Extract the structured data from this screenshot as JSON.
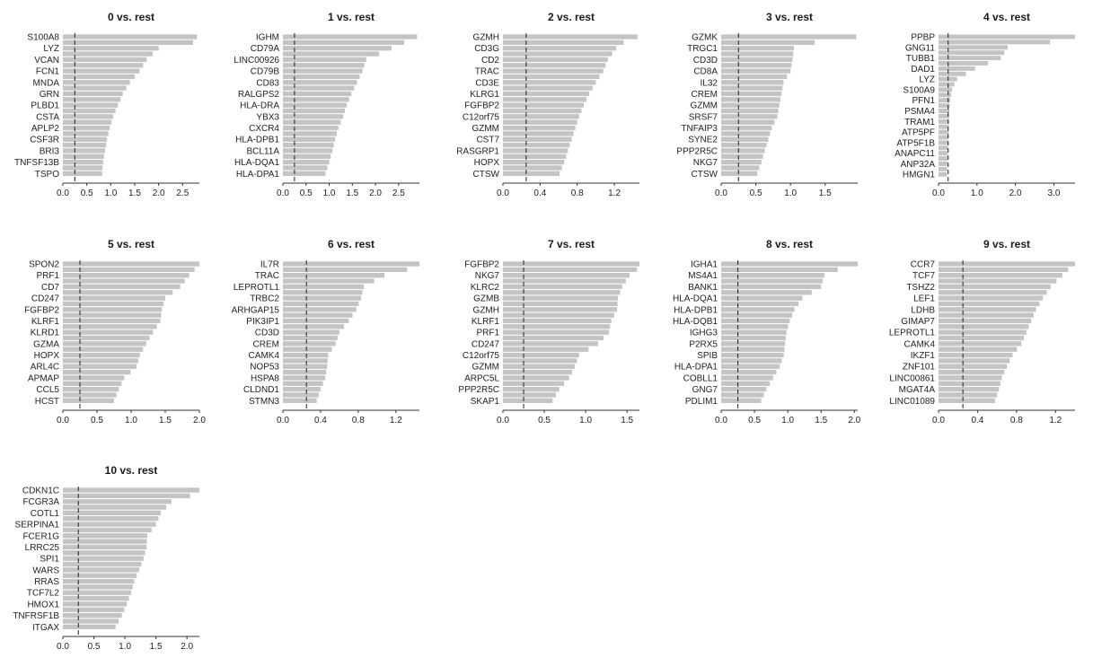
{
  "figure": {
    "colors": {
      "bar": "#c4c4c4",
      "axis": "#333333",
      "threshold": "#333333",
      "text": "#222222"
    }
  },
  "chart_data": [
    {
      "type": "bar",
      "orientation": "horizontal",
      "title": "0 vs. rest",
      "categories": [
        "S100A8",
        "LYZ",
        "VCAN",
        "FCN1",
        "MNDA",
        "GRN",
        "PLBD1",
        "CSTA",
        "APLP2",
        "CSF3R",
        "BRI3",
        "TNFSF13B",
        "TSPO"
      ],
      "values": [
        2.8,
        2.0,
        1.75,
        1.6,
        1.4,
        1.25,
        1.15,
        1.05,
        0.98,
        0.92,
        0.88,
        0.84,
        0.82
      ],
      "extra_bar": 2.72,
      "xlim": [
        0,
        2.85
      ],
      "xticks": [
        0,
        0.5,
        1.0,
        1.5,
        2.0,
        2.5
      ],
      "threshold": 0.25
    },
    {
      "type": "bar",
      "orientation": "horizontal",
      "title": "1 vs. rest",
      "categories": [
        "IGHM",
        "CD79A",
        "LINC00926",
        "CD79B",
        "CD83",
        "RALGPS2",
        "HLA-DRA",
        "YBX3",
        "CXCR4",
        "HLA-DPB1",
        "BCL11A",
        "HLA-DQA1",
        "HLA-DPA1"
      ],
      "values": [
        2.9,
        2.35,
        1.8,
        1.72,
        1.6,
        1.48,
        1.38,
        1.3,
        1.2,
        1.13,
        1.07,
        1.0,
        0.92
      ],
      "extra_bar": 2.62,
      "xlim": [
        0,
        2.95
      ],
      "xticks": [
        0,
        0.5,
        1.0,
        1.5,
        2.0,
        2.5
      ],
      "threshold": 0.25
    },
    {
      "type": "bar",
      "orientation": "horizontal",
      "title": "2 vs. rest",
      "categories": [
        "GZMH",
        "CD3G",
        "CD2",
        "TRAC",
        "CD3E",
        "KLRG1",
        "FGFBP2",
        "C12orf75",
        "GZMM",
        "CST7",
        "RASGRP1",
        "HOPX",
        "CTSW"
      ],
      "values": [
        1.45,
        1.22,
        1.13,
        1.08,
        1.0,
        0.93,
        0.87,
        0.82,
        0.78,
        0.74,
        0.7,
        0.66,
        0.61
      ],
      "extra_bar": 1.3,
      "xlim": [
        0,
        1.47
      ],
      "xticks": [
        0,
        0.4,
        0.8,
        1.2
      ],
      "threshold": 0.25
    },
    {
      "type": "bar",
      "orientation": "horizontal",
      "title": "3 vs. rest",
      "categories": [
        "GZMK",
        "TRGC1",
        "CD3D",
        "CD8A",
        "IL32",
        "CREM",
        "GZMM",
        "SRSF7",
        "TNFAIP3",
        "SYNE2",
        "PPP2R5C",
        "NKG7",
        "CTSW"
      ],
      "values": [
        1.95,
        1.05,
        1.03,
        1.0,
        0.9,
        0.87,
        0.84,
        0.81,
        0.73,
        0.68,
        0.63,
        0.58,
        0.52
      ],
      "extra_bar": 1.35,
      "xlim": [
        0,
        1.97
      ],
      "xticks": [
        0,
        0.5,
        1.0,
        1.5
      ],
      "threshold": 0.25
    },
    {
      "type": "bar",
      "orientation": "horizontal",
      "title": "4 vs. rest",
      "categories": [
        "PPBP",
        "GNG11",
        "TUBB1",
        "DAD1",
        "LYZ",
        "S100A9",
        "PFN1",
        "PSMA4",
        "TRAM1",
        "ATP5PF",
        "ATP5F1B",
        "ANAPC11",
        "ANP32A",
        "HMGN1"
      ],
      "values": [
        3.55,
        1.8,
        1.62,
        0.95,
        0.48,
        0.35,
        0.3,
        0.28,
        0.27,
        0.26,
        0.25,
        0.24,
        0.23,
        0.22
      ],
      "extra_bar": 2.9,
      "xlim": [
        0,
        3.55
      ],
      "xticks": [
        0,
        1.0,
        2.0,
        3.0
      ],
      "threshold": 0.25
    },
    {
      "type": "bar",
      "orientation": "horizontal",
      "title": "5 vs. rest",
      "categories": [
        "SPON2",
        "PRF1",
        "CD7",
        "CD247",
        "FGFBP2",
        "KLRF1",
        "KLRD1",
        "GZMA",
        "HOPX",
        "ARL4C",
        "APMAP",
        "CCL5",
        "HCST"
      ],
      "values": [
        2.0,
        1.85,
        1.72,
        1.5,
        1.45,
        1.43,
        1.32,
        1.22,
        1.13,
        1.08,
        0.9,
        0.82,
        0.75
      ],
      "extra_bar": 1.93,
      "xlim": [
        0,
        2.0
      ],
      "xticks": [
        0,
        0.5,
        1.0,
        1.5,
        2.0
      ],
      "threshold": 0.25
    },
    {
      "type": "bar",
      "orientation": "horizontal",
      "title": "6 vs. rest",
      "categories": [
        "IL7R",
        "TRAC",
        "LEPROTL1",
        "TRBC2",
        "ARHGAP15",
        "PIK3IP1",
        "CD3D",
        "CREM",
        "CAMK4",
        "NOP53",
        "HSPA8",
        "CLDND1",
        "STMN3"
      ],
      "values": [
        1.45,
        1.08,
        0.86,
        0.83,
        0.78,
        0.7,
        0.6,
        0.56,
        0.48,
        0.47,
        0.45,
        0.4,
        0.36
      ],
      "extra_bar": 1.32,
      "xlim": [
        0,
        1.45
      ],
      "xticks": [
        0,
        0.4,
        0.8,
        1.2
      ],
      "threshold": 0.25
    },
    {
      "type": "bar",
      "orientation": "horizontal",
      "title": "7 vs. rest",
      "categories": [
        "FGFBP2",
        "NKG7",
        "KLRC2",
        "GZMB",
        "GZMH",
        "KLRF1",
        "PRF1",
        "CD247",
        "C12orf75",
        "GZMM",
        "ARPC5L",
        "PPP2R5C",
        "SKAP1"
      ],
      "values": [
        1.65,
        1.53,
        1.44,
        1.39,
        1.38,
        1.31,
        1.28,
        1.15,
        0.92,
        0.87,
        0.8,
        0.68,
        0.6
      ],
      "extra_bar": 1.62,
      "xlim": [
        0,
        1.65
      ],
      "xticks": [
        0,
        0.5,
        1.0,
        1.5
      ],
      "threshold": 0.25
    },
    {
      "type": "bar",
      "orientation": "horizontal",
      "title": "8 vs. rest",
      "categories": [
        "IGHA1",
        "MS4A1",
        "BANK1",
        "HLA-DQA1",
        "HLA-DPB1",
        "HLA-DQB1",
        "IGHG3",
        "P2RX5",
        "SPIB",
        "HLA-DPA1",
        "COBLL1",
        "GNG7",
        "PDLIM1"
      ],
      "values": [
        2.05,
        1.55,
        1.5,
        1.22,
        1.1,
        1.03,
        0.98,
        0.96,
        0.94,
        0.88,
        0.78,
        0.68,
        0.6
      ],
      "extra_bar": 1.75,
      "xlim": [
        0,
        2.05
      ],
      "xticks": [
        0,
        0.5,
        1.0,
        1.5,
        2.0
      ],
      "threshold": 0.25
    },
    {
      "type": "bar",
      "orientation": "horizontal",
      "title": "9 vs. rest",
      "categories": [
        "CCR7",
        "TCF7",
        "TSHZ2",
        "LEF1",
        "LDHB",
        "GIMAP7",
        "LEPROTL1",
        "CAMK4",
        "IKZF1",
        "ZNF101",
        "LINC00861",
        "MGAT4A",
        "LINC01089"
      ],
      "values": [
        1.4,
        1.27,
        1.15,
        1.07,
        1.0,
        0.95,
        0.9,
        0.85,
        0.76,
        0.7,
        0.65,
        0.62,
        0.58
      ],
      "extra_bar": 1.33,
      "xlim": [
        0,
        1.4
      ],
      "xticks": [
        0,
        0.4,
        0.8,
        1.2
      ],
      "threshold": 0.25
    },
    {
      "type": "bar",
      "orientation": "horizontal",
      "title": "10 vs. rest",
      "categories": [
        "CDKN1C",
        "FCGR3A",
        "COTL1",
        "SERPINA1",
        "FCER1G",
        "LRRC25",
        "SPI1",
        "WARS",
        "RRAS",
        "TCF7L2",
        "HMOX1",
        "TNFRSF1B",
        "ITGAX"
      ],
      "values": [
        2.2,
        1.75,
        1.58,
        1.5,
        1.36,
        1.35,
        1.3,
        1.23,
        1.15,
        1.1,
        1.03,
        0.95,
        0.85
      ],
      "extra_bar": 2.05,
      "xlim": [
        0,
        2.2
      ],
      "xticks": [
        0,
        0.5,
        1.0,
        1.5,
        2.0
      ],
      "threshold": 0.25
    }
  ]
}
